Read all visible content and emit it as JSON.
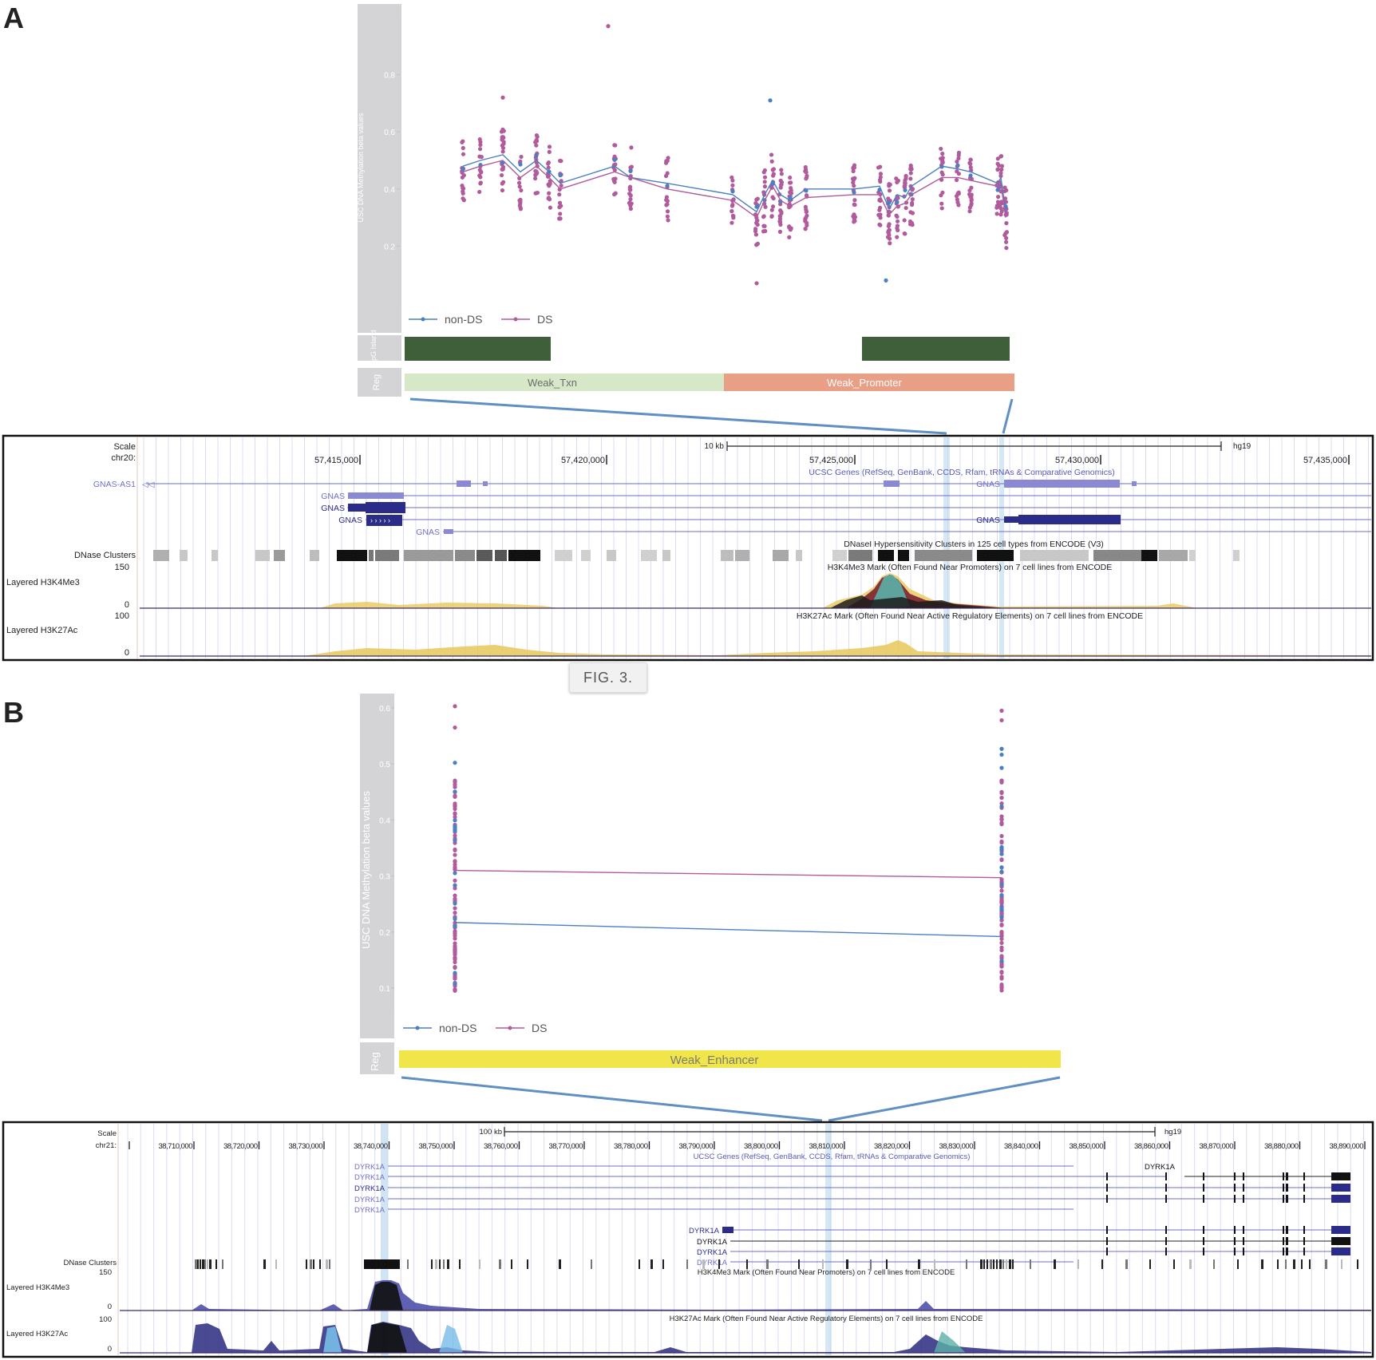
{
  "panels": {
    "a": {
      "letter": "A",
      "chart_data": {
        "type": "scatter",
        "ylabel": "USC DNA Methylation beta values",
        "ylim": [
          0,
          1
        ],
        "yticks": [
          0.2,
          0.4,
          0.6,
          0.8
        ],
        "tick_labels": [
          "0.2",
          "0.4",
          "0.6",
          "0.8"
        ],
        "legend": [
          "non-DS",
          "DS"
        ],
        "legend_position": "bottom-left",
        "colors": {
          "non_ds": "#4a7fc1",
          "ds": "#b05b9b"
        },
        "series": [
          {
            "name": "non-DS",
            "x": [
              1,
              2,
              3,
              4,
              5,
              6,
              7,
              8,
              9,
              10,
              11,
              12,
              13,
              14,
              15,
              16,
              17,
              18,
              19,
              20,
              21,
              22,
              23,
              24,
              25,
              26,
              27,
              28,
              29
            ],
            "values": [
              0.48,
              0.5,
              0.52,
              0.46,
              0.5,
              0.46,
              0.42,
              0.48,
              0.44,
              0.42,
              0.38,
              0.32,
              0.38,
              0.43,
              0.38,
              0.36,
              0.4,
              0.4,
              0.41,
              0.33,
              0.38,
              0.37,
              0.41,
              0.48,
              0.47,
              0.46,
              0.42,
              0.44,
              0.32
            ]
          },
          {
            "name": "DS",
            "x": [
              1,
              2,
              3,
              4,
              5,
              6,
              7,
              8,
              9,
              10,
              11,
              12,
              13,
              14,
              15,
              16,
              17,
              18,
              19,
              20,
              21,
              22,
              23,
              24,
              25,
              26,
              27,
              28,
              29
            ],
            "values": [
              0.46,
              0.48,
              0.5,
              0.44,
              0.48,
              0.44,
              0.4,
              0.46,
              0.44,
              0.4,
              0.36,
              0.3,
              0.36,
              0.41,
              0.36,
              0.34,
              0.37,
              0.38,
              0.38,
              0.31,
              0.34,
              0.35,
              0.38,
              0.44,
              0.44,
              0.43,
              0.41,
              0.42,
              0.3
            ]
          }
        ]
      },
      "cpg_label": "CpG Island",
      "reg_label": "Reg",
      "reg_segments": [
        {
          "label": "Weak_Txn",
          "color": "#d6e8c8"
        },
        {
          "label": "Weak_Promoter",
          "color": "#e89f86"
        }
      ],
      "cpg_color": "#3f5e3a",
      "browser": {
        "scale_label": "Scale",
        "chrom_label": "chr20:",
        "scale_bar": "10 kb",
        "assembly": "hg19",
        "coords": [
          "57,415,000",
          "57,420,000",
          "57,425,000",
          "57,430,000",
          "57,435,000"
        ],
        "genes_title": "UCSC Genes (RefSeq, GenBank, CCDS, Rfam, tRNAs & Comparative Genomics)",
        "gene_labels": [
          "GNAS-AS1",
          "GNAS",
          "GNAS",
          "GNAS",
          "GNAS",
          "GNAS",
          "GNAS"
        ],
        "dnase_label": "DNase Clusters",
        "dnase_title": "DNaseI Hypersensitivity Clusters in 125 cell types from ENCODE (V3)",
        "h3k4_label": "Layered H3K4Me3",
        "h3k4_title": "H3K4Me3 Mark (Often Found Near Promoters) on 7 cell lines from ENCODE",
        "h3k4_max": "150",
        "h3k4_min": "0",
        "h3k27_label": "Layered H3K27Ac",
        "h3k27_title": "H3K27Ac Mark (Often Found Near Active Regulatory Elements) on 7 cell lines from ENCODE",
        "h3k27_max": "100",
        "h3k27_min": "0"
      }
    },
    "caption": "FIG. 3.",
    "b": {
      "letter": "B",
      "chart_data": {
        "type": "scatter",
        "ylabel": "USC DNA Methylation beta values",
        "ylim": [
          0.08,
          0.62
        ],
        "yticks": [
          0.1,
          0.2,
          0.3,
          0.4,
          0.5,
          0.6
        ],
        "tick_labels": [
          "0.1",
          "0.2",
          "0.3",
          "0.4",
          "0.5",
          "0.6"
        ],
        "legend": [
          "non-DS",
          "DS"
        ],
        "legend_position": "bottom-left",
        "series": [
          {
            "name": "non-DS",
            "x": [
              1,
              2
            ],
            "values": [
              0.217,
              0.192
            ]
          },
          {
            "name": "DS",
            "x": [
              1,
              2
            ],
            "values": [
              0.31,
              0.297
            ]
          }
        ]
      },
      "reg_label": "Reg",
      "reg_segments": [
        {
          "label": "Weak_Enhancer",
          "color": "#f0e64a"
        }
      ],
      "browser": {
        "scale_label": "Scale",
        "chrom_label": "chr21:",
        "scale_bar": "100 kb",
        "assembly": "hg19",
        "coords": [
          "38,710,000",
          "38,720,000",
          "38,730,000",
          "38,740,000",
          "38,750,000",
          "38,760,000",
          "38,770,000",
          "38,780,000",
          "38,790,000",
          "38,800,000",
          "38,810,000",
          "38,820,000",
          "38,830,000",
          "38,840,000",
          "38,850,000",
          "38,860,000",
          "38,870,000",
          "38,880,000",
          "38,890,000"
        ],
        "genes_title": "UCSC Genes (RefSeq, GenBank, CCDS, Rfam, tRNAs & Comparative Genomics)",
        "gene_labels": [
          "DYRK1A",
          "DYRK1A",
          "DYRK1A",
          "DYRK1A",
          "DYRK1A",
          "DYRK1A",
          "DYRK1A",
          "DYRK1A",
          "DYRK1A",
          "DYRK1A"
        ],
        "dnase_label": "DNase Clusters",
        "h3k4_label": "Layered H3K4Me3",
        "h3k4_title": "H3K4Me3 Mark (Often Found Near Promoters) on 7 cell lines from ENCODE",
        "h3k4_max": "150",
        "h3k4_min": "0",
        "h3k27_label": "Layered H3K27Ac",
        "h3k27_title": "H3K27Ac Mark (Often Found Near Active Regulatory Elements) on 7 cell lines from ENCODE",
        "h3k27_max": "100",
        "h3k27_min": "0"
      }
    }
  }
}
